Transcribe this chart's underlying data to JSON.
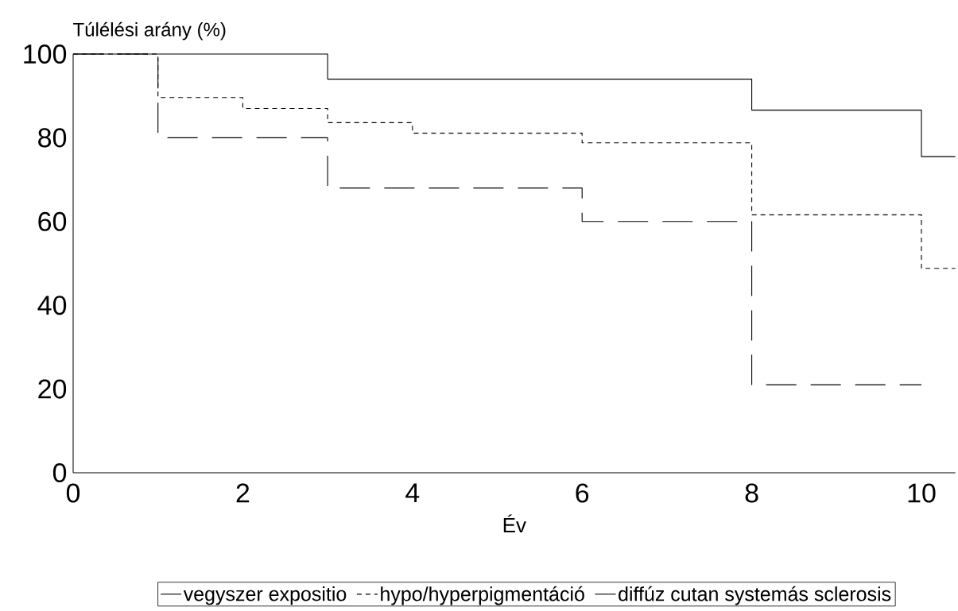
{
  "chart_data": {
    "type": "step",
    "xlabel": "Év",
    "ylabel": "Túlélési arány (%)",
    "xlim": [
      0,
      10.4
    ],
    "ylim": [
      0,
      100
    ],
    "xticks": [
      0,
      2,
      4,
      6,
      8,
      10
    ],
    "yticks": [
      0,
      20,
      40,
      60,
      80,
      100
    ],
    "legend": "bottom",
    "series": [
      {
        "name": "vegyszer expositio",
        "color": "#000000",
        "line_style": "solid",
        "x": [
          0,
          3,
          8,
          10,
          10.4
        ],
        "values": [
          100,
          94,
          86.6,
          75.5,
          75.5
        ]
      },
      {
        "name": "hypo/hyperpigmentáció",
        "color": "#000000",
        "line_style": "dotted",
        "x": [
          0,
          1,
          2,
          3,
          4,
          6,
          8,
          10,
          10.4
        ],
        "values": [
          100,
          89.6,
          87,
          83.6,
          81.1,
          78.8,
          61.6,
          48.8,
          48.8
        ]
      },
      {
        "name": "diffúz cutan systemás sclerosis",
        "color": "#000000",
        "line_style": "dashed",
        "x": [
          0,
          1,
          3,
          6,
          8,
          10
        ],
        "values": [
          100,
          80,
          68,
          60,
          21,
          21
        ]
      }
    ]
  }
}
